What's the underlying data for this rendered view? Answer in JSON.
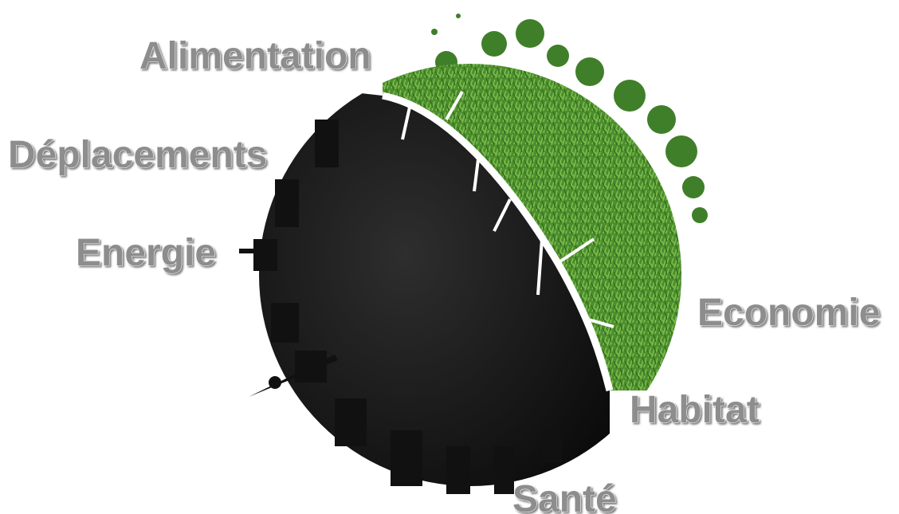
{
  "labels": [
    "Alimentation",
    "Déplacements",
    "Energie",
    "Economie",
    "Habitat",
    "Santé"
  ]
}
